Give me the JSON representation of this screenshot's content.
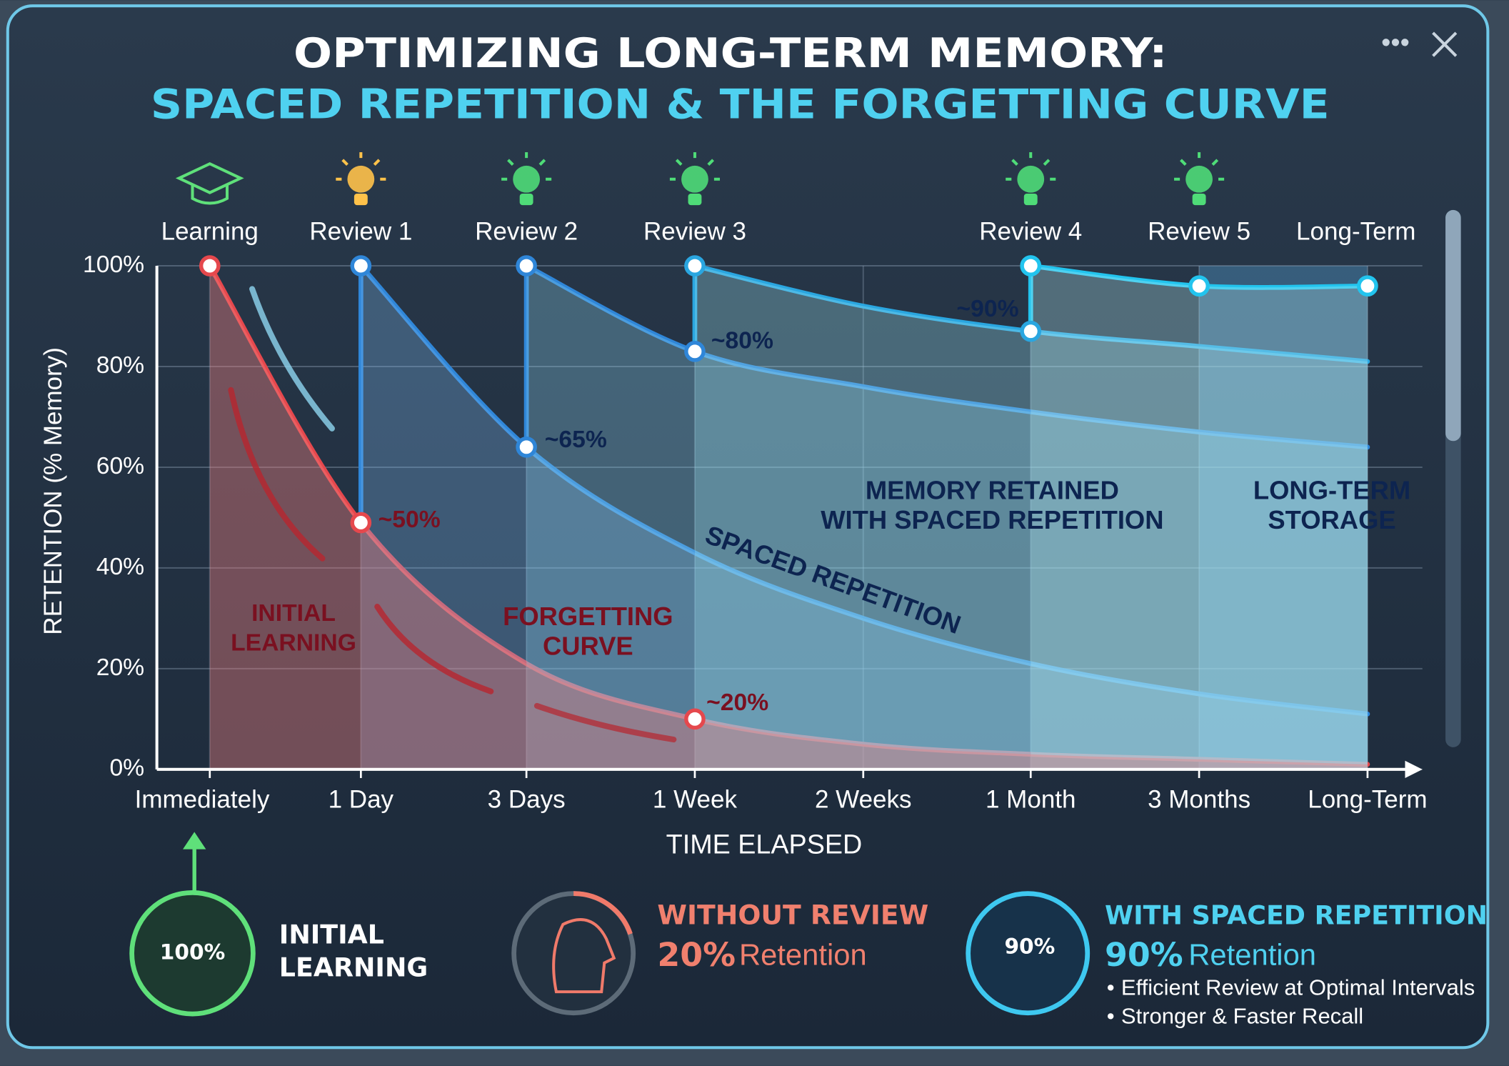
{
  "chart_data": {
    "type": "line",
    "title": "OPTIMIZING LONG-TERM MEMORY:",
    "subtitle": "SPACED REPETITION & THE FORGETTING CURVE",
    "xlabel": "TIME ELAPSED",
    "ylabel": "RETENTION (% Memory)",
    "categories": [
      "Immediately",
      "1 Day",
      "3 Days",
      "1 Week",
      "2 Weeks",
      "1 Month",
      "3 Months",
      "Long-Term"
    ],
    "stages": [
      "Learning",
      "Review 1",
      "Review 2",
      "Review 3",
      null,
      "Review 4",
      "Review 5",
      "Long-Term"
    ],
    "ylim": [
      0,
      100
    ],
    "yticks": [
      {
        "value": 0,
        "label": "0%"
      },
      {
        "value": 20,
        "label": "20%"
      },
      {
        "value": 40,
        "label": "40%"
      },
      {
        "value": 60,
        "label": "60%"
      },
      {
        "value": 80,
        "label": "80%"
      },
      {
        "value": 100,
        "label": "100%"
      }
    ],
    "grid": true,
    "series": [
      {
        "color": "#e5484d",
        "values": [
          100,
          49,
          21,
          10,
          5,
          3,
          2,
          1
        ]
      },
      {
        "color": "#2f86d8",
        "values": [
          null,
          100,
          64,
          43,
          30,
          21,
          15,
          11
        ]
      },
      {
        "color": "#2f86d8",
        "values": [
          null,
          null,
          100,
          83,
          76,
          71,
          67,
          64
        ]
      },
      {
        "color": "#2aa6e0",
        "values": [
          null,
          null,
          null,
          100,
          92,
          87,
          84,
          81
        ]
      },
      {
        "color": "#22c4ee",
        "values": [
          null,
          null,
          null,
          null,
          null,
          100,
          96,
          96
        ]
      }
    ],
    "annotations": [
      "~50%",
      "~65%",
      "~80%",
      "~90%",
      "~20%",
      [
        "INITIAL",
        "LEARNING"
      ],
      [
        "FORGETTING",
        "CURVE"
      ],
      "SPACED REPETITION",
      [
        "MEMORY RETAINED",
        "WITH SPACED REPETITION"
      ],
      [
        "LONG-TERM",
        "STORAGE"
      ]
    ]
  },
  "summary": {
    "initial": {
      "badge": "100%",
      "title": [
        "INITIAL",
        "LEARNING"
      ]
    },
    "without": {
      "title": "WITHOUT REVIEW",
      "figure": "20%",
      "text": "Retention"
    },
    "with": {
      "badge": "90%",
      "title": "WITH SPACED REPETITION",
      "figure": "90%",
      "text": "Retention",
      "bullets": [
        "Efficient Review at Optimal Intervals",
        "Stronger & Faster Recall"
      ]
    }
  }
}
